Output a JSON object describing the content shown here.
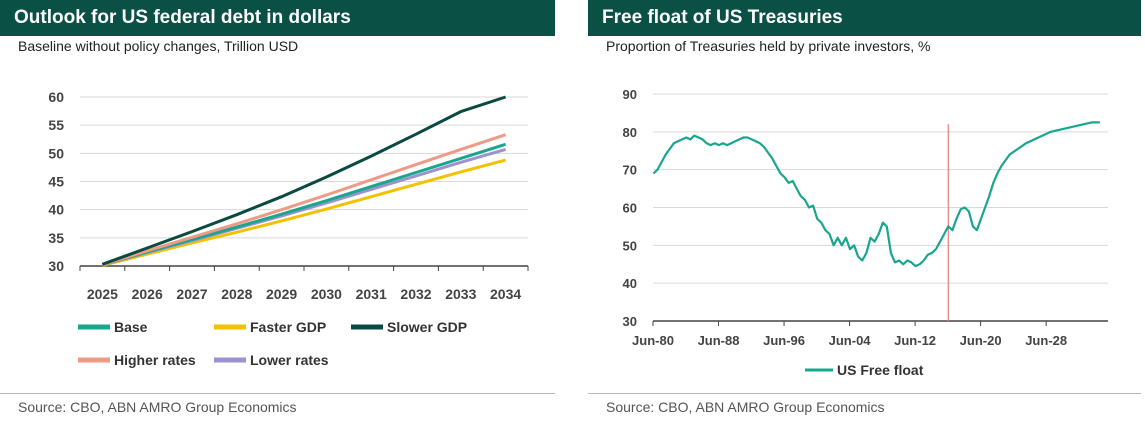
{
  "left": {
    "title": "Outlook for US federal debt in dollars",
    "subtitle": "Baseline without policy changes, Trillion USD",
    "source": "Source: CBO, ABN AMRO Group Economics"
  },
  "right": {
    "title": "Free float of US Treasuries",
    "subtitle": "Proportion of Treasuries held by private investors, %",
    "source": "Source: CBO, ABN AMRO Group Economics"
  },
  "chart_data": [
    {
      "type": "line",
      "title": "Outlook for US federal debt in dollars",
      "subtitle": "Baseline without policy changes, Trillion USD",
      "categories": [
        "2025",
        "2026",
        "2027",
        "2028",
        "2029",
        "2030",
        "2031",
        "2032",
        "2033",
        "2034"
      ],
      "ylim": [
        30,
        60
      ],
      "yticks": [
        30,
        35,
        40,
        45,
        50,
        55,
        60
      ],
      "grid": true,
      "legend_position": "bottom",
      "series": [
        {
          "name": "Base",
          "color": "#1aa58f",
          "values": [
            30.2,
            32.5,
            34.7,
            36.9,
            39.2,
            41.6,
            44.1,
            46.6,
            49.1,
            51.6
          ]
        },
        {
          "name": "Faster GDP",
          "color": "#f2c200",
          "values": [
            30.1,
            32.1,
            34.1,
            36.0,
            38.0,
            40.1,
            42.3,
            44.5,
            46.7,
            48.8
          ]
        },
        {
          "name": "Slower GDP",
          "color": "#0b4a40",
          "values": [
            30.3,
            33.2,
            36.1,
            39.1,
            42.3,
            45.8,
            49.5,
            53.4,
            57.4,
            61.3
          ]
        },
        {
          "name": "Higher rates",
          "color": "#ef9a86",
          "values": [
            30.2,
            32.7,
            35.1,
            37.5,
            40.0,
            42.6,
            45.3,
            48.0,
            50.7,
            53.3
          ]
        },
        {
          "name": "Lower rates",
          "color": "#9b92cf",
          "values": [
            30.2,
            32.4,
            34.5,
            36.7,
            38.9,
            41.2,
            43.6,
            46.0,
            48.4,
            50.7
          ]
        }
      ]
    },
    {
      "type": "line",
      "title": "Free float of US Treasuries",
      "subtitle": "Proportion of Treasuries held by private investors, %",
      "x_tick_labels": [
        "Jun-80",
        "Jun-88",
        "Jun-96",
        "Jun-04",
        "Jun-12",
        "Jun-20",
        "Jun-28"
      ],
      "xlim": [
        1980.45,
        2036.0
      ],
      "ylim": [
        30,
        90
      ],
      "yticks": [
        30,
        40,
        50,
        60,
        70,
        80,
        90
      ],
      "grid": true,
      "legend_position": "bottom",
      "vertical_marker": {
        "x": 2016.5,
        "color": "#e87c7c"
      },
      "series": [
        {
          "name": "US Free float",
          "color": "#1aa58f",
          "x": [
            1980.5,
            1981.0,
            1981.5,
            1982.0,
            1982.5,
            1983.0,
            1983.5,
            1984.0,
            1984.5,
            1985.0,
            1985.5,
            1986.0,
            1986.5,
            1987.0,
            1987.5,
            1988.0,
            1988.5,
            1989.0,
            1989.5,
            1990.0,
            1990.5,
            1991.0,
            1991.5,
            1992.0,
            1992.5,
            1993.0,
            1993.5,
            1994.0,
            1994.5,
            1995.0,
            1995.5,
            1996.0,
            1996.5,
            1997.0,
            1997.5,
            1998.0,
            1998.5,
            1999.0,
            1999.5,
            2000.0,
            2000.5,
            2001.0,
            2001.5,
            2002.0,
            2002.5,
            2003.0,
            2003.5,
            2004.0,
            2004.5,
            2005.0,
            2005.5,
            2006.0,
            2006.5,
            2007.0,
            2007.5,
            2008.0,
            2008.5,
            2009.0,
            2009.5,
            2010.0,
            2010.5,
            2011.0,
            2011.5,
            2012.0,
            2012.5,
            2013.0,
            2013.5,
            2014.0,
            2014.5,
            2015.0,
            2015.5,
            2016.0,
            2016.5,
            2017.0,
            2017.5,
            2018.0,
            2018.5,
            2019.0,
            2019.5,
            2020.0,
            2020.5,
            2021.0,
            2021.5,
            2022.0,
            2022.5,
            2023.0,
            2024.0,
            2025.0,
            2026.0,
            2027.0,
            2028.0,
            2029.0,
            2030.0,
            2031.0,
            2032.0,
            2033.0,
            2034.0,
            2035.0
          ],
          "values": [
            69,
            70,
            72,
            74,
            75.5,
            77,
            77.5,
            78,
            78.5,
            78,
            79,
            78.5,
            78,
            77,
            76.5,
            77,
            76.5,
            77,
            76.5,
            77,
            77.5,
            78,
            78.5,
            78.5,
            78,
            77.5,
            77,
            76,
            74.5,
            73,
            71,
            69,
            68,
            66.5,
            67,
            65,
            63,
            62,
            60,
            60.5,
            57,
            56,
            54,
            53,
            50,
            52,
            50,
            52,
            49,
            50,
            47,
            46,
            48,
            52,
            51,
            53,
            56,
            55,
            48,
            45.5,
            46,
            45,
            46,
            45.5,
            44.5,
            45,
            46,
            47.5,
            48,
            49,
            51,
            53,
            55,
            54,
            57,
            59.5,
            60,
            59,
            55,
            54,
            57,
            60,
            63,
            66.5,
            69,
            71,
            74,
            75.5,
            77,
            78,
            79,
            80,
            80.5,
            81,
            81.5,
            82,
            82.5,
            82.5
          ]
        }
      ]
    }
  ]
}
